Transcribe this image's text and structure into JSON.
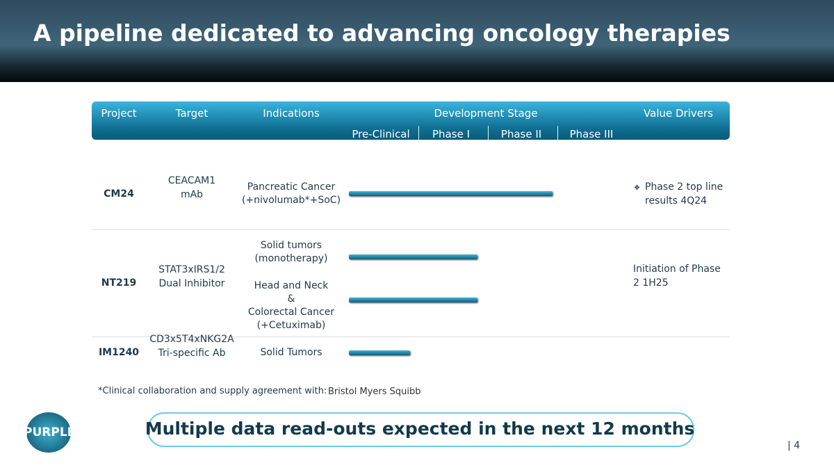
{
  "title": "A pipeline dedicated to advancing oncology therapies",
  "table": {
    "header": [
      "Project",
      "Target",
      "Indications",
      "Development Stage",
      "Value Drivers"
    ],
    "stages": [
      "Pre-Clinical",
      "Phase I",
      "Phase II",
      "Phase III"
    ],
    "rows": [
      {
        "project": "CM24",
        "target": [
          "CEACAM1",
          "mAb"
        ],
        "indications": [
          "Pancreatic Cancer",
          "(+nivolumab*+SoC)"
        ],
        "value_drivers": [
          "Phase 2 top line",
          "results 4Q24"
        ]
      },
      {
        "project": "NT219",
        "target": [
          "STAT3xIRS1/2",
          "Dual Inhibitor"
        ],
        "indications": [
          "Solid tumors",
          "(monotherapy)",
          "Head and Neck",
          "&",
          "Colorectal Cancer",
          "(+Cetuximab)"
        ],
        "value_drivers": [
          "Initiation of Phase",
          "2 1H25"
        ]
      },
      {
        "project": "IM1240",
        "target": [
          "CD3x5T4xNKG2A",
          "Tri-specific Ab"
        ],
        "indications": [
          "Solid Tumors"
        ]
      }
    ]
  },
  "footnote": "*Clinical collaboration and supply agreement with:",
  "partner": "Bristol Myers Squibb",
  "logo": "PURPLE",
  "banner": "Multiple data read-outs expected in the next 12 months",
  "page": "| 4"
}
